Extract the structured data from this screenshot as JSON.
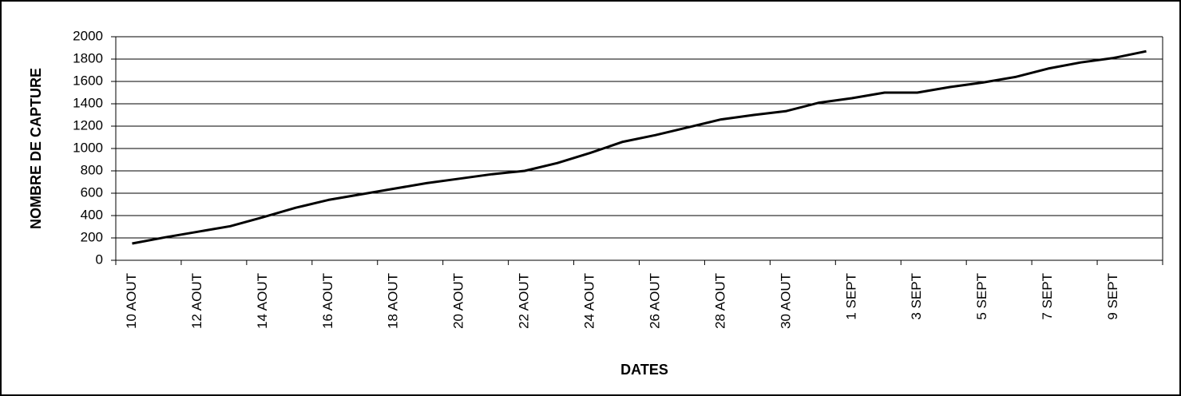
{
  "chart_data": {
    "type": "line",
    "x_label": "DATES",
    "y_label": "NOMBRE DE CAPTURE",
    "categories": [
      "10 AOUT",
      null,
      "12 AOUT",
      null,
      "14 AOUT",
      null,
      "16 AOUT",
      null,
      "18 AOUT",
      null,
      "20 AOUT",
      null,
      "22 AOUT",
      null,
      "24 AOUT",
      null,
      "26 AOUT",
      null,
      "28 AOUT",
      null,
      "30 AOUT",
      null,
      "1 SEPT",
      null,
      "3 SEPT",
      null,
      "5 SEPT",
      null,
      "7 SEPT",
      null,
      "9 SEPT",
      null
    ],
    "series": [
      {
        "color": "#000000",
        "values": [
          150,
          205,
          255,
          305,
          385,
          470,
          540,
          590,
          640,
          690,
          730,
          770,
          800,
          870,
          960,
          1060,
          1120,
          1190,
          1260,
          1300,
          1335,
          1410,
          1450,
          1500,
          1500,
          1550,
          1590,
          1640,
          1715,
          1770,
          1810,
          1870
        ]
      }
    ],
    "ylim": [
      0,
      2000
    ],
    "yticks": [
      0,
      200,
      400,
      600,
      800,
      1000,
      1200,
      1400,
      1600,
      1800,
      2000
    ],
    "grid": true
  }
}
